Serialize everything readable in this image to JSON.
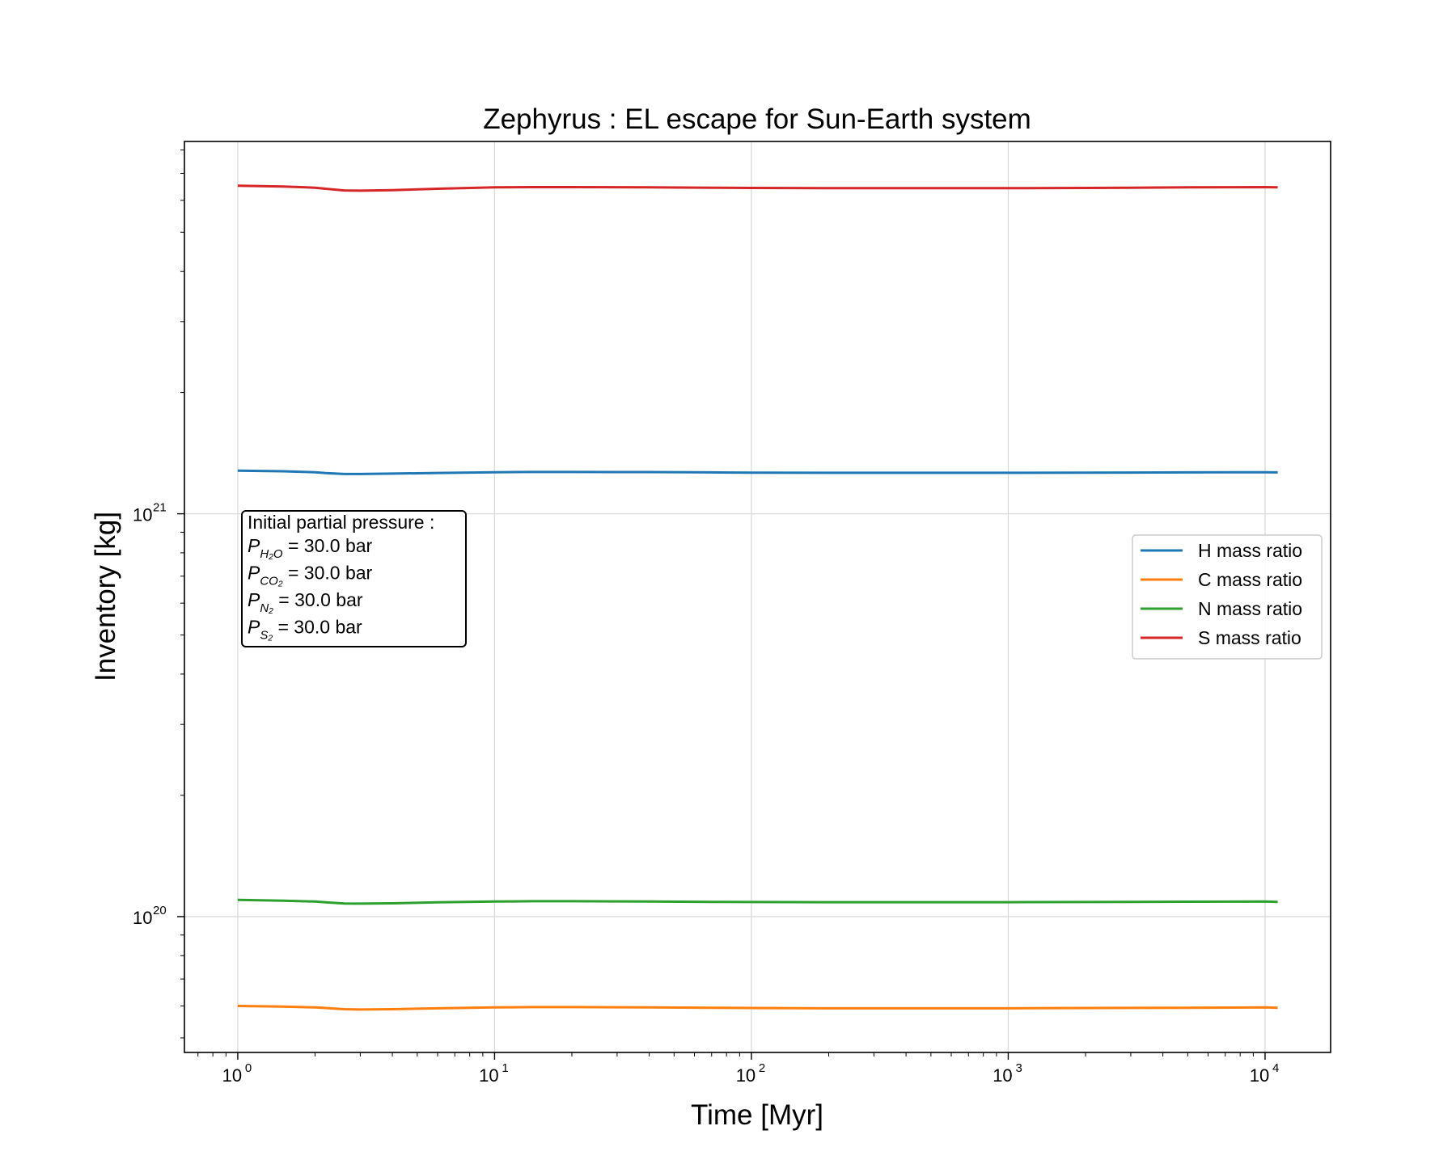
{
  "chart_data": {
    "type": "line",
    "title": "Zephyrus : EL escape for Sun-Earth system",
    "xlabel": "Time [Myr]",
    "ylabel": "Inventory [kg]",
    "xscale": "log",
    "yscale": "log",
    "xlim": [
      0.62,
      18000
    ],
    "ylim": [
      4.6e+19,
      8.4e+21
    ],
    "x_ticks": [
      {
        "base": "10",
        "exp": "0",
        "value": 1
      },
      {
        "base": "10",
        "exp": "1",
        "value": 10
      },
      {
        "base": "10",
        "exp": "2",
        "value": 100
      },
      {
        "base": "10",
        "exp": "3",
        "value": 1000
      },
      {
        "base": "10",
        "exp": "4",
        "value": 10000
      }
    ],
    "y_ticks": [
      {
        "base": "10",
        "exp": "20",
        "value": 1e+20
      },
      {
        "base": "10",
        "exp": "21",
        "value": 1e+21
      }
    ],
    "grid": true,
    "legend_position": "center-right",
    "x": [
      1,
      1.5,
      2,
      2.2,
      2.6,
      3,
      4,
      6,
      10,
      14,
      20,
      40,
      70,
      100,
      200,
      500,
      1000,
      2000,
      5000,
      10000,
      11200
    ],
    "series": [
      {
        "name": "H mass ratio",
        "color": "#1f77b4",
        "values": [
          1.28e+21,
          1.275e+21,
          1.268e+21,
          1.262e+21,
          1.255e+21,
          1.255e+21,
          1.258e+21,
          1.263e+21,
          1.268e+21,
          1.27e+21,
          1.27e+21,
          1.269e+21,
          1.267e+21,
          1.265e+21,
          1.264e+21,
          1.264e+21,
          1.264e+21,
          1.265e+21,
          1.267e+21,
          1.268e+21,
          1.267e+21
        ]
      },
      {
        "name": "C mass ratio",
        "color": "#ff7f0e",
        "values": [
          6e+19,
          5.98e+19,
          5.95e+19,
          5.93e+19,
          5.89e+19,
          5.88e+19,
          5.89e+19,
          5.92e+19,
          5.95e+19,
          5.96e+19,
          5.96e+19,
          5.95e+19,
          5.94e+19,
          5.93e+19,
          5.92e+19,
          5.92e+19,
          5.92e+19,
          5.93e+19,
          5.94e+19,
          5.95e+19,
          5.94e+19
        ]
      },
      {
        "name": "N mass ratio",
        "color": "#2ca02c",
        "values": [
          1.1e+20,
          1.095e+20,
          1.09e+20,
          1.085e+20,
          1.078e+20,
          1.077e+20,
          1.079e+20,
          1.085e+20,
          1.09e+20,
          1.092e+20,
          1.092e+20,
          1.09e+20,
          1.088e+20,
          1.087e+20,
          1.086e+20,
          1.086e+20,
          1.086e+20,
          1.087e+20,
          1.089e+20,
          1.09e+20,
          1.088e+20
        ]
      },
      {
        "name": "S mass ratio",
        "color": "#d62728",
        "values": [
          6.52e+21,
          6.49e+21,
          6.45e+21,
          6.41e+21,
          6.35e+21,
          6.34e+21,
          6.36e+21,
          6.41e+21,
          6.46e+21,
          6.47e+21,
          6.47e+21,
          6.46e+21,
          6.45e+21,
          6.44e+21,
          6.43e+21,
          6.43e+21,
          6.43e+21,
          6.44e+21,
          6.46e+21,
          6.47e+21,
          6.46e+21
        ]
      }
    ],
    "annotation": {
      "title": "Initial partial pressure :",
      "lines": [
        {
          "symbol": "P",
          "sub": "H₂O",
          "text": " = 30.0 bar"
        },
        {
          "symbol": "P",
          "sub": "CO₂",
          "text": " = 30.0 bar"
        },
        {
          "symbol": "P",
          "sub": "N₂",
          "text": " = 30.0 bar"
        },
        {
          "symbol": "P",
          "sub": "S₂",
          "text": " = 30.0 bar"
        }
      ]
    }
  }
}
